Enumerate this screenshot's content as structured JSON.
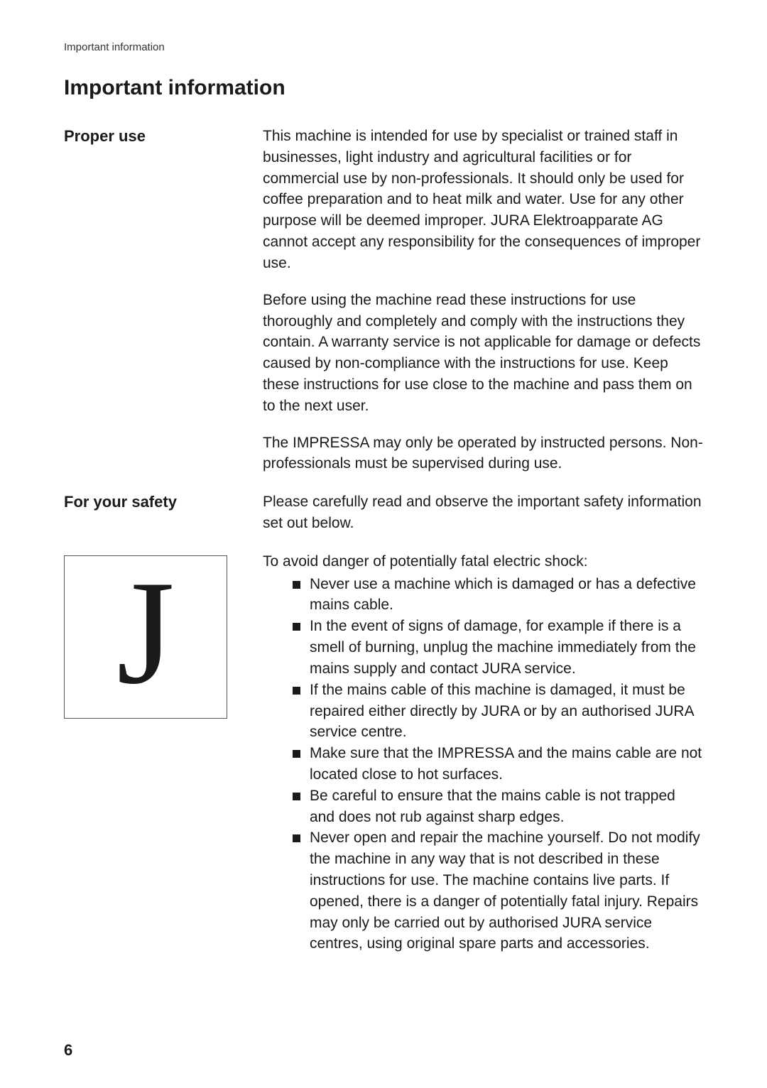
{
  "running_head": "Important information",
  "section_title": "Important information",
  "proper_use": {
    "heading": "Proper use",
    "p1": "This machine is intended for use by specialist or trained staff in businesses, light industry and agricultural facilities or for commercial use by non-professionals. It should only be used for coffee preparation and to heat milk and water. Use for any other purpose will be deemed improper. JURA Elektroapparate AG cannot accept any responsibility for the consequences of improper use.",
    "p2": "Before using the machine read these instructions for use thoroughly and completely and comply with the instructions they contain. A warranty service is not applicable for damage or defects caused by non-compliance with the instructions for use. Keep these instructions for use close to the machine and pass them on to the next user.",
    "p3": "The IMPRESSA may only be operated by instructed persons. Non-professionals must be supervised during use."
  },
  "safety": {
    "heading": "For your safety",
    "intro_para": "Please carefully read and observe the important safety information set out below.",
    "warning_glyph": "J",
    "list_intro": "To avoid danger of potentially fatal electric shock:",
    "items": [
      "Never use a machine which is damaged or has a defective mains cable.",
      "In the event of signs of damage, for example if there is a smell of burning, unplug the machine immediately from the mains supply and contact JURA service.",
      "If the mains cable of this machine is damaged, it must be repaired either directly by JURA or by an authorised JURA service centre.",
      "Make sure that the IMPRESSA and the mains cable are not located close to hot surfaces.",
      "Be careful to ensure that the mains cable is not trapped and does not rub against sharp edges.",
      "Never open and repair the machine yourself. Do not modify the machine in any way that is not described in these instructions for use. The machine contains live parts. If opened, there is a danger of potentially fatal injury. Repairs may only be carried out by authorised JURA service centres, using original spare parts and accessories."
    ]
  },
  "page_number": "6"
}
